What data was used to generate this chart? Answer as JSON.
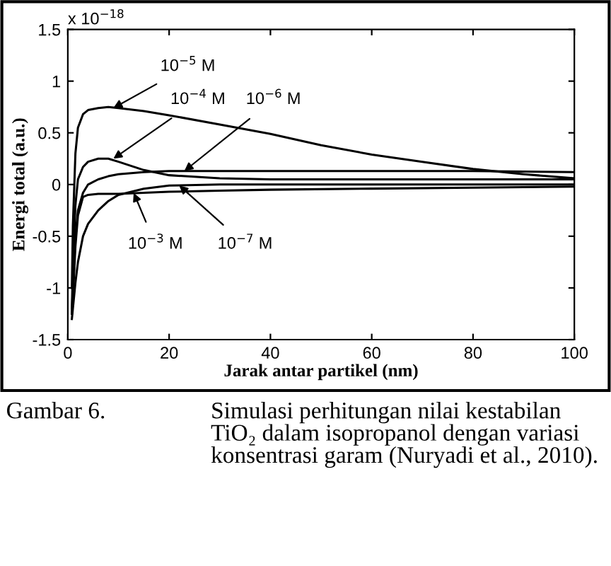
{
  "chart_data": {
    "type": "line",
    "xlabel": "Jarak antar partikel (nm)",
    "ylabel": "Energi total (a.u.)",
    "xlim": [
      0,
      100
    ],
    "ylim": [
      -1.5,
      1.5
    ],
    "xticks": [
      0,
      20,
      40,
      60,
      80,
      100
    ],
    "yticks": [
      -1.5,
      -1,
      -0.5,
      0,
      0.5,
      1,
      1.5
    ],
    "grid": false,
    "marker": "none",
    "line_style": "solid",
    "series": [
      {
        "color": "#000000",
        "x": [
          0.8,
          1,
          1.5,
          2,
          3,
          4,
          6,
          8,
          10,
          15,
          20,
          30,
          40,
          50,
          60,
          70,
          80,
          90,
          100
        ],
        "values": [
          -1.0,
          -0.4,
          0.3,
          0.55,
          0.68,
          0.72,
          0.74,
          0.75,
          0.74,
          0.71,
          0.67,
          0.58,
          0.49,
          0.38,
          0.29,
          0.22,
          0.15,
          0.1,
          0.06
        ]
      },
      {
        "color": "#000000",
        "x": [
          0.8,
          1,
          1.5,
          2,
          3,
          4,
          6,
          8,
          10,
          15,
          20,
          30,
          40,
          60,
          80,
          100
        ],
        "values": [
          -1.2,
          -0.8,
          -0.2,
          0.05,
          0.17,
          0.22,
          0.25,
          0.25,
          0.22,
          0.14,
          0.09,
          0.06,
          0.05,
          0.05,
          0.05,
          0.05
        ]
      },
      {
        "color": "#000000",
        "x": [
          0.8,
          1,
          1.5,
          2,
          3,
          4,
          6,
          8,
          10,
          15,
          20,
          30,
          40,
          60,
          80,
          100
        ],
        "values": [
          -1.25,
          -1.0,
          -0.5,
          -0.25,
          -0.08,
          0.0,
          0.05,
          0.08,
          0.1,
          0.12,
          0.13,
          0.13,
          0.13,
          0.13,
          0.13,
          0.12
        ]
      },
      {
        "color": "#000000",
        "x": [
          0.8,
          1,
          1.5,
          2,
          3,
          4,
          6,
          8,
          10,
          15,
          20,
          30,
          40,
          60,
          80,
          100
        ],
        "values": [
          -1.3,
          -1.2,
          -0.95,
          -0.75,
          -0.5,
          -0.38,
          -0.25,
          -0.16,
          -0.1,
          -0.04,
          -0.01,
          0.0,
          0.0,
          0.0,
          0.0,
          0.0
        ]
      },
      {
        "color": "#000000",
        "x": [
          0.8,
          1,
          1.5,
          2,
          3,
          4,
          6,
          8,
          10,
          15,
          20,
          30,
          40,
          60,
          80,
          100
        ],
        "values": [
          -1.25,
          -1.1,
          -0.6,
          -0.3,
          -0.12,
          -0.1,
          -0.09,
          -0.09,
          -0.09,
          -0.08,
          -0.07,
          -0.06,
          -0.05,
          -0.04,
          -0.03,
          -0.02
        ]
      }
    ],
    "annotations": [
      {
        "text": "10$^{−5}$ M",
        "x": 9,
        "y": 0.74
      },
      {
        "text": "10$^{−4}$ M",
        "x": 9,
        "y": 0.25
      },
      {
        "text": "10$^{−6}$ M",
        "x": 23,
        "y": 0.13
      },
      {
        "text": "10$^{−3}$ M",
        "x": 13,
        "y": -0.08
      },
      {
        "text": "10$^{−7}$ M",
        "x": 22,
        "y": -0.01
      },
      "x 10$^{−18}$",
      "Gambar 6.",
      "Simulasi perhitungan nilai kestabilan TiO₂ dalam isopropanol dengan variasi konsentrasi garam (Nuryadi et al., 2010)."
    ]
  }
}
